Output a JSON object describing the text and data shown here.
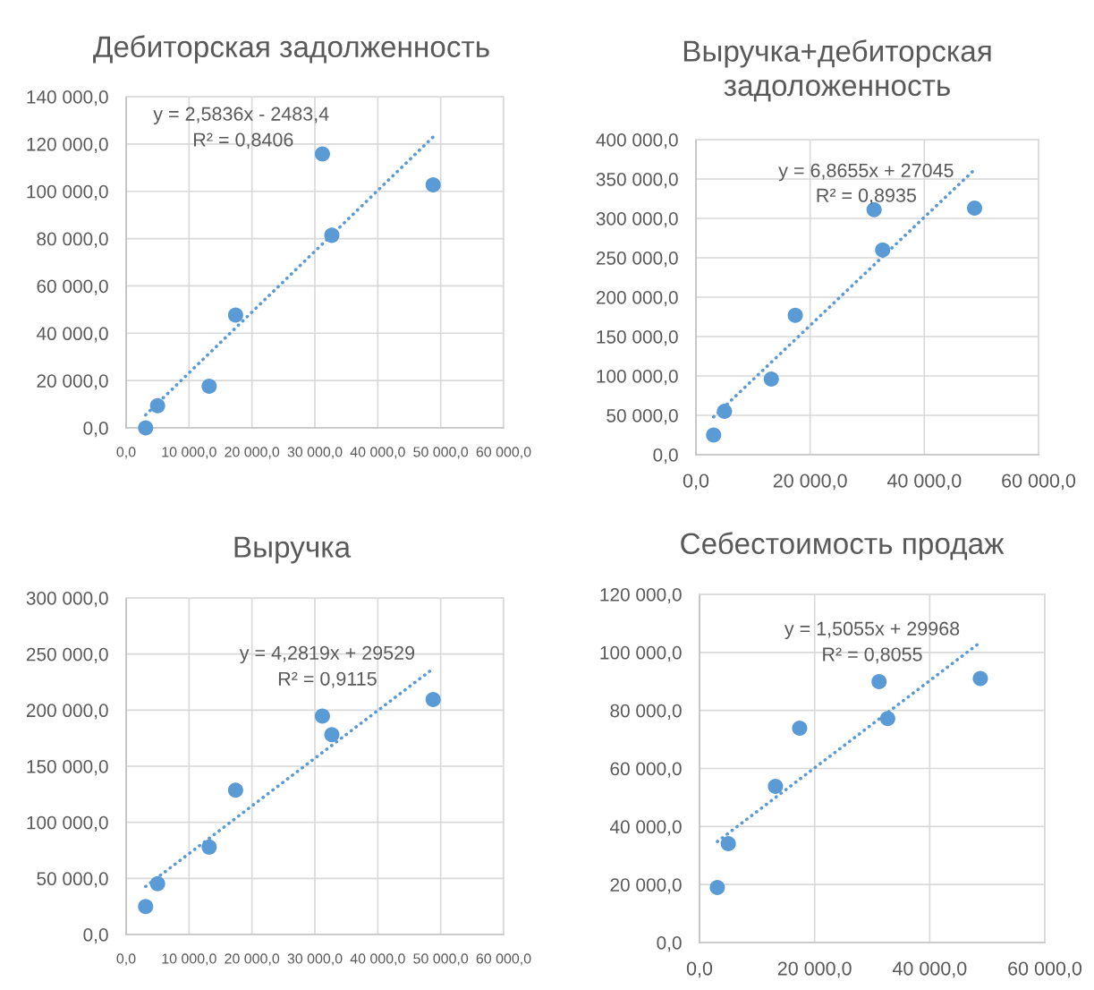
{
  "chart_data": [
    {
      "type": "scatter",
      "title": "Дебиторская задолженность",
      "grid": true,
      "series": [
        {
          "color": "#5b9bd5",
          "marker": "circle",
          "x": [
            3100,
            5000,
            13200,
            17400,
            31200,
            32700,
            48800
          ],
          "values": [
            0,
            9400,
            17600,
            47700,
            115800,
            81400,
            102700
          ]
        },
        {
          "type": "line",
          "color": "#5b9bd5",
          "line_style": "dotted",
          "x": [
            3100,
            48800
          ],
          "values": [
            5500,
            123000
          ]
        }
      ],
      "xlim": [
        0,
        60000
      ],
      "xticks": [
        {
          "value": 0,
          "label": "0,0"
        },
        {
          "value": 10000,
          "label": "10 000,0"
        },
        {
          "value": 20000,
          "label": "20 000,0"
        },
        {
          "value": 30000,
          "label": "30 000,0"
        },
        {
          "value": 40000,
          "label": "40 000,0"
        },
        {
          "value": 50000,
          "label": "50 000,0"
        },
        {
          "value": 60000,
          "label": "60 000,0"
        }
      ],
      "ylim": [
        0,
        140000
      ],
      "yticks": [
        {
          "value": 0,
          "label": "0,0"
        },
        {
          "value": 20000,
          "label": "20 000,0"
        },
        {
          "value": 40000,
          "label": "40 000,0"
        },
        {
          "value": 60000,
          "label": "60 000,0"
        },
        {
          "value": 80000,
          "label": "80 000,0"
        },
        {
          "value": 100000,
          "label": "100 000,0"
        },
        {
          "value": 120000,
          "label": "120 000,0"
        },
        {
          "value": 140000,
          "label": "140 000,0"
        }
      ],
      "annotations": [
        "y = 2,5836x - 2483,4",
        "R² = 0,8406"
      ]
    },
    {
      "type": "scatter",
      "title": "Выручка+дебиторская\nзадоложенность",
      "grid": true,
      "series": [
        {
          "color": "#5b9bd5",
          "marker": "circle",
          "x": [
            3100,
            5000,
            13200,
            17400,
            31200,
            32700,
            48800
          ],
          "values": [
            25000,
            55000,
            96000,
            177000,
            311000,
            260000,
            313000
          ]
        },
        {
          "type": "line",
          "color": "#5b9bd5",
          "line_style": "dotted",
          "x": [
            3100,
            48800
          ],
          "values": [
            48000,
            362000
          ]
        }
      ],
      "xlim": [
        0,
        60000
      ],
      "xticks": [
        {
          "value": 0,
          "label": "0,0"
        },
        {
          "value": 20000,
          "label": "20 000,0"
        },
        {
          "value": 40000,
          "label": "40 000,0"
        },
        {
          "value": 60000,
          "label": "60 000,0"
        }
      ],
      "ylim": [
        0,
        400000
      ],
      "yticks": [
        {
          "value": 0,
          "label": "0,0"
        },
        {
          "value": 50000,
          "label": "50 000,0"
        },
        {
          "value": 100000,
          "label": "100 000,0"
        },
        {
          "value": 150000,
          "label": "150 000,0"
        },
        {
          "value": 200000,
          "label": "200 000,0"
        },
        {
          "value": 250000,
          "label": "250 000,0"
        },
        {
          "value": 300000,
          "label": "300 000,0"
        },
        {
          "value": 350000,
          "label": "350 000,0"
        },
        {
          "value": 400000,
          "label": "400 000,0"
        }
      ],
      "annotations": [
        "y = 6,8655x + 27045",
        "R² = 0,8935"
      ]
    },
    {
      "type": "scatter",
      "title": "Выручка",
      "grid": true,
      "series": [
        {
          "color": "#5b9bd5",
          "marker": "circle",
          "x": [
            3100,
            5000,
            13200,
            17400,
            31200,
            32700,
            48800
          ],
          "values": [
            24900,
            45300,
            77900,
            128600,
            194700,
            178100,
            209400
          ]
        },
        {
          "type": "line",
          "color": "#5b9bd5",
          "line_style": "dotted",
          "x": [
            3100,
            48800
          ],
          "values": [
            42800,
            237000
          ]
        }
      ],
      "xlim": [
        0,
        60000
      ],
      "xticks": [
        {
          "value": 0,
          "label": "0,0"
        },
        {
          "value": 10000,
          "label": "10 000,0"
        },
        {
          "value": 20000,
          "label": "20 000,0"
        },
        {
          "value": 30000,
          "label": "30 000,0"
        },
        {
          "value": 40000,
          "label": "40 000,0"
        },
        {
          "value": 50000,
          "label": "50 000,0"
        },
        {
          "value": 60000,
          "label": "60 000,0"
        }
      ],
      "ylim": [
        0,
        300000
      ],
      "yticks": [
        {
          "value": 0,
          "label": "0,0"
        },
        {
          "value": 50000,
          "label": "50 000,0"
        },
        {
          "value": 100000,
          "label": "100 000,0"
        },
        {
          "value": 150000,
          "label": "150 000,0"
        },
        {
          "value": 200000,
          "label": "200 000,0"
        },
        {
          "value": 250000,
          "label": "250 000,0"
        },
        {
          "value": 300000,
          "label": "300 000,0"
        }
      ],
      "annotations": [
        "y = 4,2819x + 29529",
        "R² = 0,9115"
      ]
    },
    {
      "type": "scatter",
      "title": "Себестоимость продаж",
      "grid": true,
      "series": [
        {
          "color": "#5b9bd5",
          "marker": "circle",
          "x": [
            3100,
            5000,
            13200,
            17400,
            31200,
            32700,
            48800
          ],
          "values": [
            19000,
            34100,
            53800,
            73900,
            89900,
            77200,
            91000
          ]
        },
        {
          "type": "line",
          "color": "#5b9bd5",
          "line_style": "dotted",
          "x": [
            3100,
            48800
          ],
          "values": [
            34800,
            103500
          ]
        }
      ],
      "xlim": [
        0,
        60000
      ],
      "xticks": [
        {
          "value": 0,
          "label": "0,0"
        },
        {
          "value": 20000,
          "label": "20 000,0"
        },
        {
          "value": 40000,
          "label": "40 000,0"
        },
        {
          "value": 60000,
          "label": "60 000,0"
        }
      ],
      "ylim": [
        0,
        120000
      ],
      "yticks": [
        {
          "value": 0,
          "label": "0,0"
        },
        {
          "value": 20000,
          "label": "20 000,0"
        },
        {
          "value": 40000,
          "label": "40 000,0"
        },
        {
          "value": 60000,
          "label": "60 000,0"
        },
        {
          "value": 80000,
          "label": "80 000,0"
        },
        {
          "value": 100000,
          "label": "100 000,0"
        },
        {
          "value": 120000,
          "label": "120 000,0"
        }
      ],
      "annotations": [
        "y = 1,5055x + 29968",
        "R² = 0,8055"
      ]
    }
  ]
}
